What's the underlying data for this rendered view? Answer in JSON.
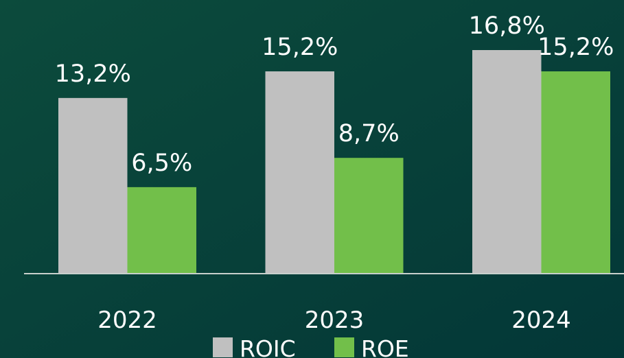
{
  "chart_data": {
    "type": "bar",
    "categories": [
      "2022",
      "2023",
      "2024"
    ],
    "series": [
      {
        "name": "ROIC",
        "color": "#c0c0c0",
        "values": [
          13.2,
          15.2,
          16.8
        ],
        "value_labels": [
          "13,2%",
          "15,2%",
          "16,8%"
        ]
      },
      {
        "name": "ROE",
        "color": "#72bf4a",
        "values": [
          6.5,
          8.7,
          15.2
        ],
        "value_labels": [
          "6,5%",
          "8,7%",
          "15,2%"
        ]
      }
    ]
  }
}
